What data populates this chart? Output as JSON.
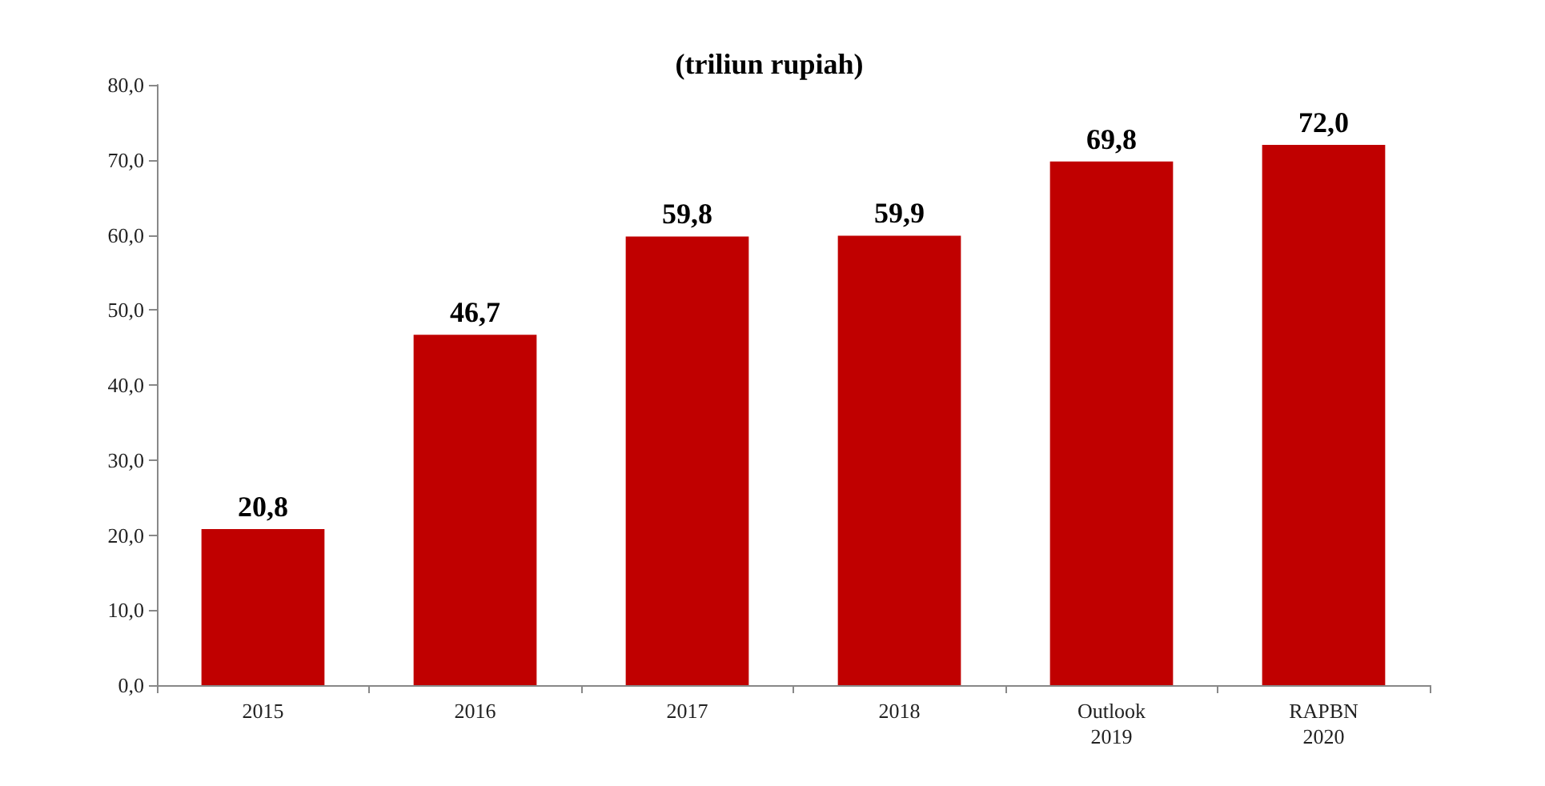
{
  "chart_data": {
    "type": "bar",
    "title": "(triliun rupiah)",
    "categories": [
      "2015",
      "2016",
      "2017",
      "2018",
      "Outlook\n2019",
      "RAPBN\n2020"
    ],
    "values": [
      20.8,
      46.7,
      59.8,
      59.9,
      69.8,
      72.0
    ],
    "value_labels": [
      "20,8",
      "46,7",
      "59,8",
      "59,9",
      "69,8",
      "72,0"
    ],
    "color": "#c00000",
    "ylim": [
      0,
      80
    ],
    "yticks": [
      {
        "value": 0,
        "label": "0,0"
      },
      {
        "value": 10,
        "label": "10,0"
      },
      {
        "value": 20,
        "label": "20,0"
      },
      {
        "value": 30,
        "label": "30,0"
      },
      {
        "value": 40,
        "label": "40,0"
      },
      {
        "value": 50,
        "label": "50,0"
      },
      {
        "value": 60,
        "label": "60,0"
      },
      {
        "value": 70,
        "label": "70,0"
      },
      {
        "value": 80,
        "label": "80,0"
      }
    ]
  }
}
